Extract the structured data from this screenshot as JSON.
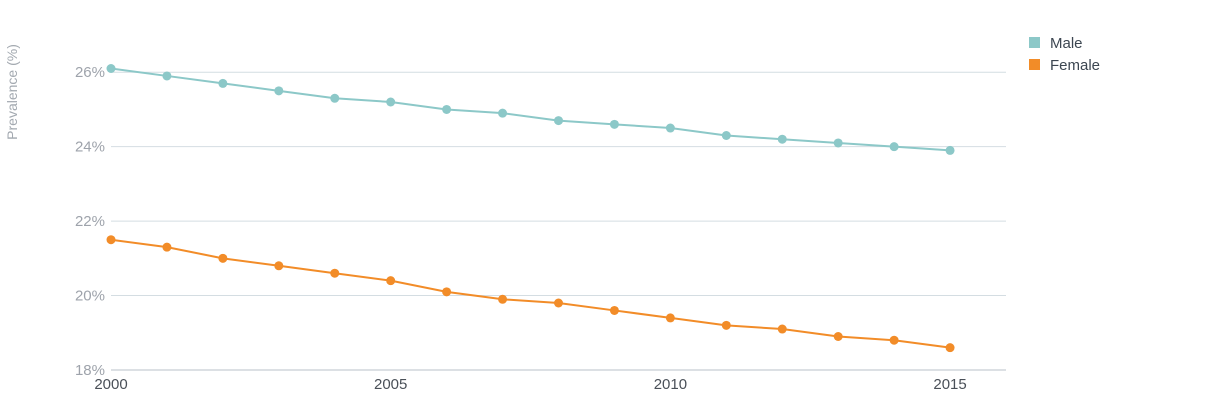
{
  "chart_data": {
    "type": "line",
    "ylabel": "Prevalence (%)",
    "xlabel": "",
    "x": [
      2000,
      2001,
      2002,
      2003,
      2004,
      2005,
      2006,
      2007,
      2008,
      2009,
      2010,
      2011,
      2012,
      2013,
      2014,
      2015
    ],
    "xlim": [
      2000,
      2016
    ],
    "ylim": [
      18,
      27
    ],
    "xticks": [
      2000,
      2005,
      2010,
      2015
    ],
    "xtick_labels": [
      "2000",
      "2005",
      "2010",
      "2015"
    ],
    "yticks": [
      18,
      20,
      22,
      24,
      26
    ],
    "ytick_labels": [
      "18%",
      "20%",
      "22%",
      "24%",
      "26%"
    ],
    "grid": true,
    "legend_position": "top-right",
    "series": [
      {
        "name": "Male",
        "color": "#8cc8c8",
        "values": [
          26.1,
          25.9,
          25.7,
          25.5,
          25.3,
          25.2,
          25.0,
          24.9,
          24.7,
          24.6,
          24.5,
          24.3,
          24.2,
          24.1,
          24.0,
          23.9
        ]
      },
      {
        "name": "Female",
        "color": "#f28c28",
        "values": [
          21.5,
          21.3,
          21.0,
          20.8,
          20.6,
          20.4,
          20.1,
          19.9,
          19.8,
          19.6,
          19.4,
          19.2,
          19.1,
          18.9,
          18.8,
          18.6
        ]
      }
    ]
  }
}
